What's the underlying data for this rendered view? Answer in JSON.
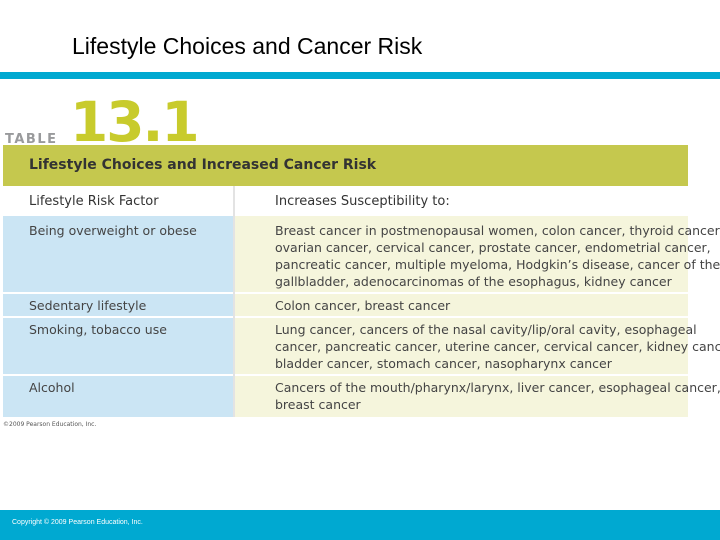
{
  "slide": {
    "title": "Lifestyle Choices and Cancer Risk",
    "footer": "Copyright © 2009 Pearson Education, Inc."
  },
  "table": {
    "label_word": "TABLE",
    "label_number": "13.1",
    "header": "Lifestyle Choices and Increased Cancer Risk",
    "columns": [
      "Lifestyle Risk Factor",
      "Increases Susceptibility to:"
    ],
    "rows": [
      {
        "factor": "Being overweight or obese",
        "lines": [
          "Breast cancer in postmenopausal women, colon cancer, thyroid cancer,",
          "ovarian cancer, cervical cancer, prostate cancer, endometrial cancer,",
          "pancreatic cancer, multiple myeloma, Hodgkin’s disease, cancer of the",
          "gallbladder, adenocarcinomas of the esophagus, kidney cancer"
        ]
      },
      {
        "factor": "Sedentary lifestyle",
        "lines": [
          "Colon cancer, breast cancer"
        ]
      },
      {
        "factor": "Smoking, tobacco use",
        "lines": [
          "Lung cancer, cancers of the nasal cavity/lip/oral cavity, esophageal",
          "cancer, pancreatic cancer, uterine cancer, cervical cancer, kidney cancer,",
          "bladder cancer, stomach cancer, nasopharynx cancer"
        ]
      },
      {
        "factor": "Alcohol",
        "lines": [
          "Cancers of the mouth/pharynx/larynx, liver cancer, esophageal cancer,",
          "breast cancer"
        ]
      }
    ],
    "credit": "©2009 Pearson Education, Inc."
  },
  "colors": {
    "accent_bar": "#00a9d1",
    "table_header": "#c5c84e",
    "table_number": "#c8cb2c",
    "factor_cell": "#cbe5f4",
    "description_cell": "#f5f5dc"
  }
}
